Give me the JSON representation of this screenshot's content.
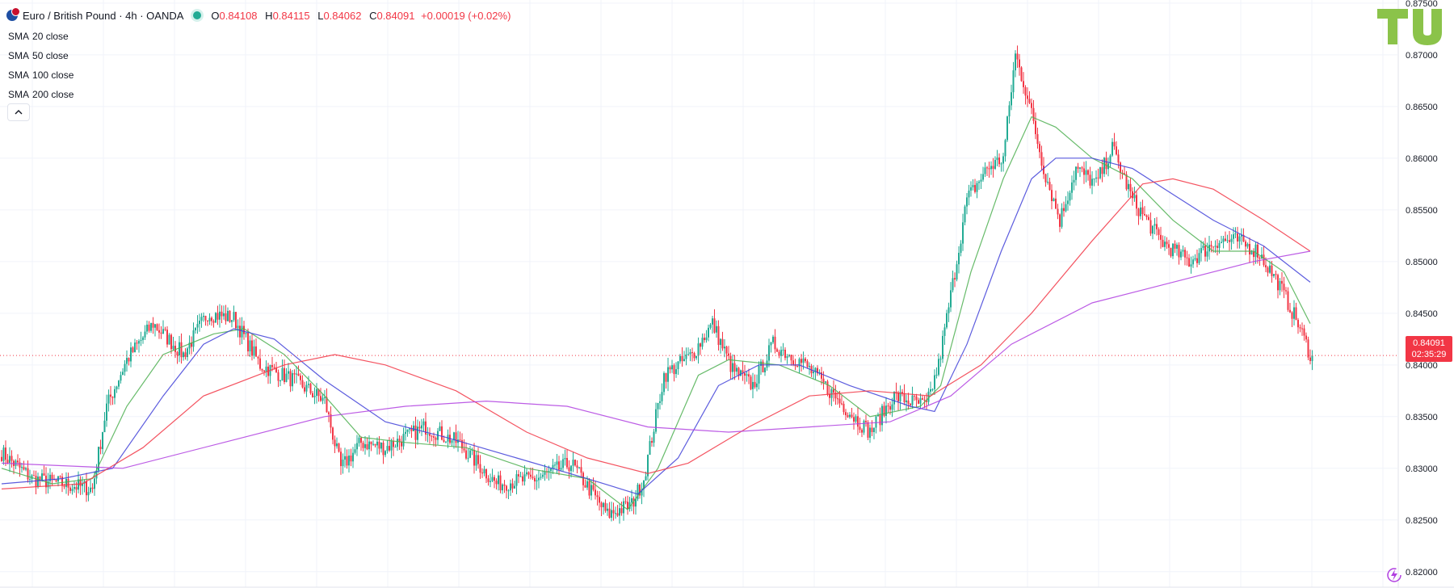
{
  "header": {
    "symbol": "Euro / British Pound · 4h · OANDA",
    "ohlc": {
      "o_label": "O",
      "o": "0.84108",
      "h_label": "H",
      "h": "0.84115",
      "l_label": "L",
      "l": "0.84062",
      "c_label": "C",
      "c": "0.84091",
      "change": "+0.00019 (+0.02%)"
    }
  },
  "indicators": [
    {
      "name": "SMA",
      "params": "20 close",
      "color": "#4caf50"
    },
    {
      "name": "SMA",
      "params": "50 close",
      "color": "#3f3fd8"
    },
    {
      "name": "SMA",
      "params": "100 close",
      "color": "#f23645"
    },
    {
      "name": "SMA",
      "params": "200 close",
      "color": "#b03fe0"
    }
  ],
  "collapse_icon": "chevron-up-icon",
  "logo_icon": "tradingview-logo-icon",
  "replay_icon": "lightning-replay-icon",
  "colors": {
    "up": "#22ab94",
    "down": "#f23645",
    "grid": "#f0f3fa",
    "axis_text": "#131722"
  },
  "last_price": {
    "value": "0.84091",
    "countdown": "02:35:29"
  },
  "chart_data": {
    "type": "candlestick",
    "y_ticks": [
      "0.82000",
      "0.82500",
      "0.83000",
      "0.83500",
      "0.84000",
      "0.84500",
      "0.85000",
      "0.85500",
      "0.86000",
      "0.86500",
      "0.87000",
      "0.87500"
    ],
    "ylim": [
      0.8185,
      0.8753
    ],
    "last_value": 0.84091,
    "anchors": [
      [
        0,
        0.8315
      ],
      [
        15,
        0.829
      ],
      [
        30,
        0.8285
      ],
      [
        45,
        0.828
      ],
      [
        52,
        0.836
      ],
      [
        62,
        0.8405
      ],
      [
        75,
        0.844
      ],
      [
        90,
        0.841
      ],
      [
        102,
        0.845
      ],
      [
        115,
        0.8445
      ],
      [
        128,
        0.84
      ],
      [
        145,
        0.8385
      ],
      [
        160,
        0.8365
      ],
      [
        168,
        0.83
      ],
      [
        178,
        0.8325
      ],
      [
        190,
        0.832
      ],
      [
        210,
        0.834
      ],
      [
        226,
        0.8325
      ],
      [
        245,
        0.8285
      ],
      [
        265,
        0.829
      ],
      [
        282,
        0.8305
      ],
      [
        300,
        0.8255
      ],
      [
        312,
        0.8265
      ],
      [
        318,
        0.829
      ],
      [
        328,
        0.839
      ],
      [
        342,
        0.841
      ],
      [
        352,
        0.844
      ],
      [
        362,
        0.8395
      ],
      [
        372,
        0.838
      ],
      [
        382,
        0.842
      ],
      [
        398,
        0.84
      ],
      [
        410,
        0.8375
      ],
      [
        422,
        0.835
      ],
      [
        430,
        0.8335
      ],
      [
        442,
        0.837
      ],
      [
        458,
        0.836
      ],
      [
        464,
        0.84
      ],
      [
        472,
        0.849
      ],
      [
        478,
        0.856
      ],
      [
        488,
        0.859
      ],
      [
        496,
        0.86
      ],
      [
        502,
        0.87
      ],
      [
        508,
        0.866
      ],
      [
        516,
        0.859
      ],
      [
        524,
        0.854
      ],
      [
        532,
        0.859
      ],
      [
        542,
        0.8575
      ],
      [
        550,
        0.861
      ],
      [
        560,
        0.856
      ],
      [
        574,
        0.852
      ],
      [
        588,
        0.85
      ],
      [
        602,
        0.852
      ],
      [
        612,
        0.852
      ],
      [
        622,
        0.851
      ],
      [
        632,
        0.848
      ],
      [
        642,
        0.844
      ],
      [
        648,
        0.841
      ]
    ],
    "sma": [
      {
        "name": "SMA 20",
        "color": "#4caf50",
        "points": [
          [
            0,
            0.83
          ],
          [
            25,
            0.8285
          ],
          [
            45,
            0.829
          ],
          [
            62,
            0.836
          ],
          [
            80,
            0.841
          ],
          [
            105,
            0.843
          ],
          [
            120,
            0.8435
          ],
          [
            140,
            0.841
          ],
          [
            160,
            0.837
          ],
          [
            178,
            0.833
          ],
          [
            200,
            0.8325
          ],
          [
            230,
            0.832
          ],
          [
            260,
            0.83
          ],
          [
            290,
            0.829
          ],
          [
            310,
            0.826
          ],
          [
            325,
            0.83
          ],
          [
            345,
            0.839
          ],
          [
            360,
            0.8405
          ],
          [
            385,
            0.84
          ],
          [
            410,
            0.838
          ],
          [
            430,
            0.835
          ],
          [
            455,
            0.836
          ],
          [
            465,
            0.838
          ],
          [
            480,
            0.849
          ],
          [
            496,
            0.858
          ],
          [
            510,
            0.864
          ],
          [
            522,
            0.863
          ],
          [
            540,
            0.86
          ],
          [
            560,
            0.858
          ],
          [
            580,
            0.854
          ],
          [
            600,
            0.851
          ],
          [
            620,
            0.851
          ],
          [
            635,
            0.849
          ],
          [
            648,
            0.844
          ]
        ]
      },
      {
        "name": "SMA 50",
        "color": "#3f3fd8",
        "points": [
          [
            0,
            0.8285
          ],
          [
            30,
            0.829
          ],
          [
            55,
            0.83
          ],
          [
            80,
            0.837
          ],
          [
            100,
            0.842
          ],
          [
            115,
            0.8435
          ],
          [
            135,
            0.8425
          ],
          [
            160,
            0.8385
          ],
          [
            190,
            0.8345
          ],
          [
            220,
            0.833
          ],
          [
            255,
            0.831
          ],
          [
            290,
            0.829
          ],
          [
            315,
            0.8275
          ],
          [
            335,
            0.831
          ],
          [
            355,
            0.838
          ],
          [
            375,
            0.84
          ],
          [
            395,
            0.84
          ],
          [
            420,
            0.838
          ],
          [
            450,
            0.836
          ],
          [
            462,
            0.8355
          ],
          [
            478,
            0.842
          ],
          [
            495,
            0.851
          ],
          [
            510,
            0.858
          ],
          [
            522,
            0.86
          ],
          [
            540,
            0.86
          ],
          [
            560,
            0.859
          ],
          [
            580,
            0.8565
          ],
          [
            600,
            0.854
          ],
          [
            625,
            0.8515
          ],
          [
            648,
            0.848
          ]
        ]
      },
      {
        "name": "SMA 100",
        "color": "#f23645",
        "points": [
          [
            0,
            0.828
          ],
          [
            40,
            0.8285
          ],
          [
            70,
            0.832
          ],
          [
            100,
            0.837
          ],
          [
            140,
            0.84
          ],
          [
            165,
            0.841
          ],
          [
            190,
            0.84
          ],
          [
            225,
            0.8375
          ],
          [
            260,
            0.8335
          ],
          [
            290,
            0.831
          ],
          [
            320,
            0.8295
          ],
          [
            340,
            0.8305
          ],
          [
            370,
            0.834
          ],
          [
            400,
            0.837
          ],
          [
            430,
            0.8375
          ],
          [
            460,
            0.837
          ],
          [
            485,
            0.84
          ],
          [
            510,
            0.845
          ],
          [
            540,
            0.852
          ],
          [
            565,
            0.8575
          ],
          [
            580,
            0.858
          ],
          [
            600,
            0.857
          ],
          [
            625,
            0.854
          ],
          [
            648,
            0.851
          ]
        ]
      },
      {
        "name": "SMA 200",
        "color": "#b03fe0",
        "points": [
          [
            0,
            0.8305
          ],
          [
            60,
            0.83
          ],
          [
            110,
            0.8325
          ],
          [
            160,
            0.835
          ],
          [
            200,
            0.836
          ],
          [
            240,
            0.8365
          ],
          [
            280,
            0.836
          ],
          [
            320,
            0.834
          ],
          [
            360,
            0.8335
          ],
          [
            400,
            0.834
          ],
          [
            440,
            0.8345
          ],
          [
            470,
            0.837
          ],
          [
            500,
            0.842
          ],
          [
            540,
            0.846
          ],
          [
            580,
            0.848
          ],
          [
            620,
            0.85
          ],
          [
            648,
            0.851
          ]
        ]
      }
    ]
  }
}
